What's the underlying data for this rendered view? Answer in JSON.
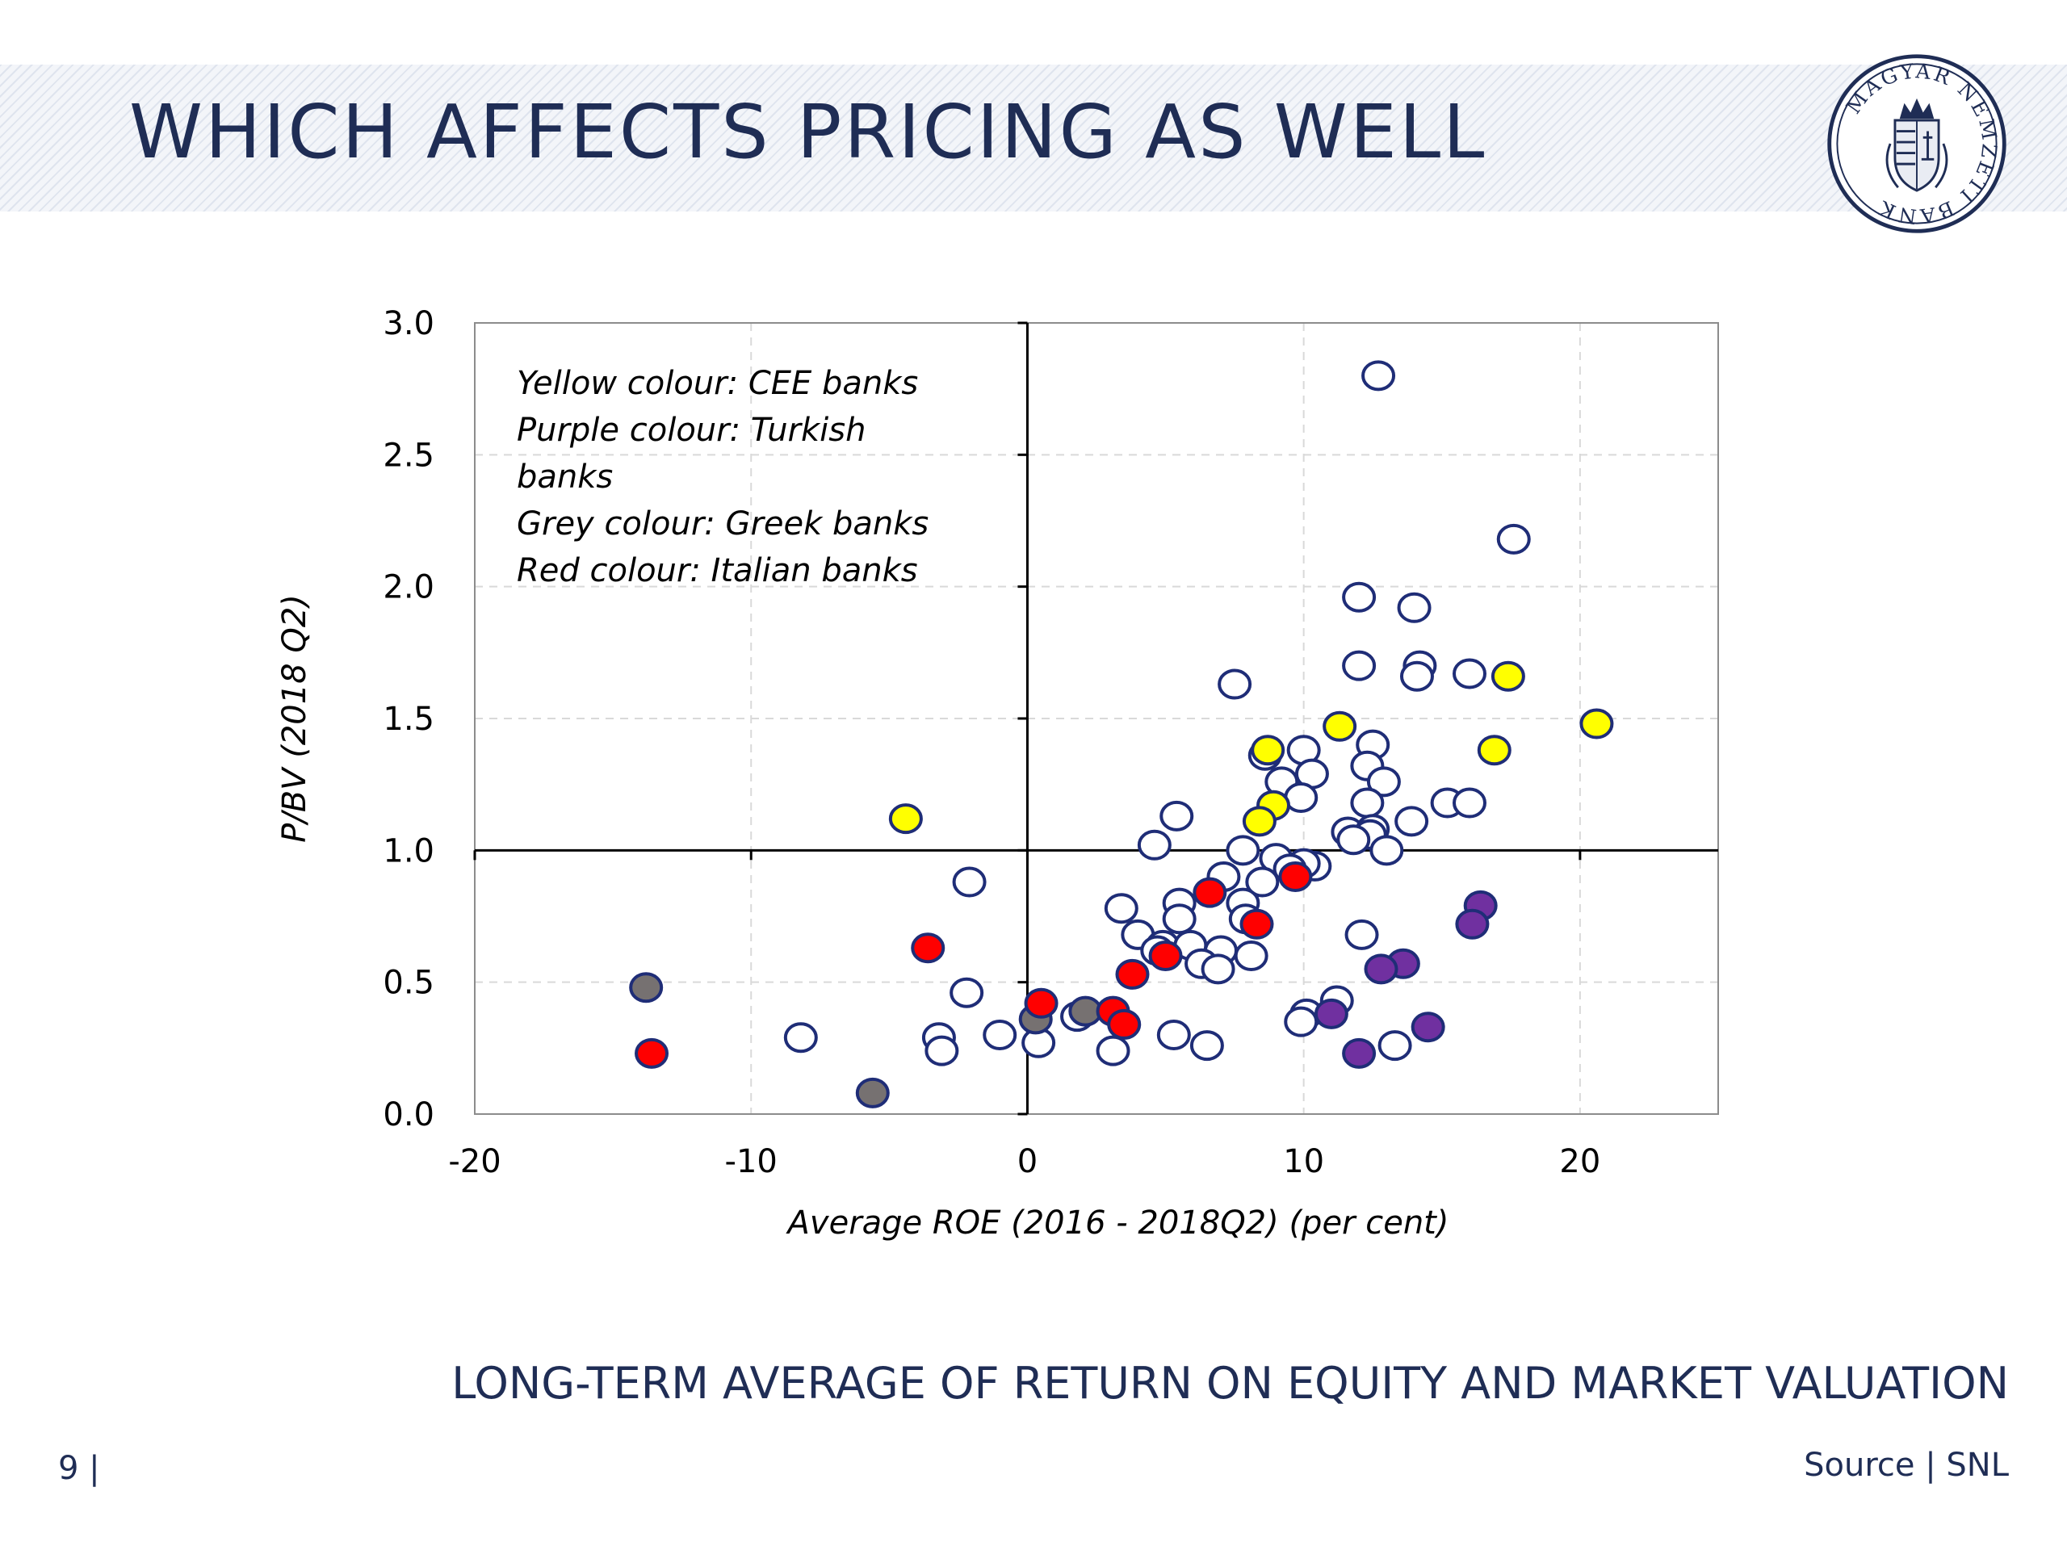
{
  "slide": {
    "title": "WHICH AFFECTS PRICING AS WELL",
    "subtitle": "LONG-TERM AVERAGE OF RETURN ON EQUITY AND MARKET VALUATION",
    "page_number": "9 |",
    "source": "Source | SNL",
    "logo": {
      "icon": "magyar-nemzeti-bank-seal-icon",
      "text": "MAGYAR NEMZETI BANK"
    }
  },
  "colors": {
    "title": "#1f2d55",
    "point_edge": "#1f2d77",
    "point_default": "#ffffff",
    "CEE": "#ffff00",
    "Turkish": "#7030a0",
    "Greek": "#767171",
    "Italian": "#ff0000"
  },
  "chart_data": {
    "type": "scatter",
    "title": "",
    "xlabel": "Average  ROE (2016 - 2018Q2) (per cent)",
    "ylabel": "P/BV (2018 Q2)",
    "xlim": [
      -20,
      25
    ],
    "ylim": [
      0,
      3
    ],
    "x_ticks": [
      -20,
      -10,
      0,
      10,
      20
    ],
    "x_tick_labels": [
      "-20",
      "-10",
      "0",
      "10",
      "20"
    ],
    "y_ticks": [
      0,
      0.5,
      1,
      1.5,
      2,
      2.5,
      3
    ],
    "y_tick_labels": [
      "0.0",
      "0.5",
      "1.0",
      "1.5",
      "2.0",
      "2.5",
      "3.0"
    ],
    "grid": true,
    "reference_lines": {
      "x": 0,
      "y": 1
    },
    "annotation": {
      "lines": [
        "Yellow colour: CEE banks",
        "Purple colour: Turkish",
        "banks",
        "Grey colour: Greek banks",
        "Red colour: Italian banks"
      ],
      "placement": "top-left"
    },
    "series": [
      {
        "group": "Other",
        "color_key": "point_default",
        "points": [
          [
            12.7,
            2.8
          ],
          [
            17.6,
            2.18
          ],
          [
            12.0,
            1.96
          ],
          [
            14.0,
            1.92
          ],
          [
            12.0,
            1.7
          ],
          [
            14.2,
            1.7
          ],
          [
            14.1,
            1.66
          ],
          [
            16.0,
            1.67
          ],
          [
            7.5,
            1.63
          ],
          [
            12.5,
            1.4
          ],
          [
            10.0,
            1.38
          ],
          [
            8.6,
            1.36
          ],
          [
            12.3,
            1.32
          ],
          [
            9.2,
            1.26
          ],
          [
            12.9,
            1.26
          ],
          [
            10.3,
            1.29
          ],
          [
            9.9,
            1.2
          ],
          [
            15.2,
            1.18
          ],
          [
            16.0,
            1.18
          ],
          [
            12.3,
            1.18
          ],
          [
            5.4,
            1.13
          ],
          [
            11.6,
            1.07
          ],
          [
            12.5,
            1.08
          ],
          [
            13.9,
            1.11
          ],
          [
            12.4,
            1.06
          ],
          [
            11.8,
            1.04
          ],
          [
            4.6,
            1.02
          ],
          [
            7.8,
            1.0
          ],
          [
            9.0,
            0.97
          ],
          [
            13.0,
            1.0
          ],
          [
            10.4,
            0.94
          ],
          [
            10.0,
            0.95
          ],
          [
            9.5,
            0.93
          ],
          [
            7.1,
            0.9
          ],
          [
            8.5,
            0.88
          ],
          [
            -2.1,
            0.88
          ],
          [
            3.4,
            0.78
          ],
          [
            5.5,
            0.8
          ],
          [
            7.8,
            0.8
          ],
          [
            5.5,
            0.74
          ],
          [
            7.9,
            0.74
          ],
          [
            4.0,
            0.68
          ],
          [
            12.1,
            0.68
          ],
          [
            4.9,
            0.64
          ],
          [
            5.9,
            0.64
          ],
          [
            4.7,
            0.62
          ],
          [
            7.0,
            0.62
          ],
          [
            8.1,
            0.6
          ],
          [
            6.3,
            0.57
          ],
          [
            6.9,
            0.55
          ],
          [
            -2.2,
            0.46
          ],
          [
            11.2,
            0.43
          ],
          [
            1.8,
            0.37
          ],
          [
            10.1,
            0.38
          ],
          [
            9.9,
            0.35
          ],
          [
            -1.0,
            0.3
          ],
          [
            -3.2,
            0.29
          ],
          [
            -8.2,
            0.29
          ],
          [
            5.3,
            0.3
          ],
          [
            0.4,
            0.27
          ],
          [
            6.5,
            0.26
          ],
          [
            13.3,
            0.26
          ],
          [
            -3.1,
            0.24
          ],
          [
            3.1,
            0.24
          ]
        ]
      },
      {
        "group": "CEE",
        "color_key": "CEE",
        "points": [
          [
            20.6,
            1.48
          ],
          [
            11.3,
            1.47
          ],
          [
            17.4,
            1.66
          ],
          [
            16.9,
            1.38
          ],
          [
            8.7,
            1.38
          ],
          [
            8.9,
            1.17
          ],
          [
            8.4,
            1.11
          ],
          [
            -4.4,
            1.12
          ]
        ]
      },
      {
        "group": "Turkish",
        "color_key": "Turkish",
        "points": [
          [
            16.4,
            0.79
          ],
          [
            16.1,
            0.72
          ],
          [
            13.6,
            0.57
          ],
          [
            12.8,
            0.55
          ],
          [
            11.0,
            0.38
          ],
          [
            14.5,
            0.33
          ],
          [
            12.0,
            0.23
          ]
        ]
      },
      {
        "group": "Greek",
        "color_key": "Greek",
        "points": [
          [
            -13.8,
            0.48
          ],
          [
            -5.6,
            0.08
          ],
          [
            0.3,
            0.36
          ],
          [
            2.1,
            0.39
          ]
        ]
      },
      {
        "group": "Italian",
        "color_key": "Italian",
        "points": [
          [
            -13.6,
            0.23
          ],
          [
            -3.6,
            0.63
          ],
          [
            0.5,
            0.42
          ],
          [
            3.1,
            0.39
          ],
          [
            3.5,
            0.34
          ],
          [
            3.8,
            0.53
          ],
          [
            5.0,
            0.6
          ],
          [
            6.6,
            0.84
          ],
          [
            8.3,
            0.72
          ],
          [
            9.7,
            0.9
          ]
        ]
      }
    ]
  }
}
